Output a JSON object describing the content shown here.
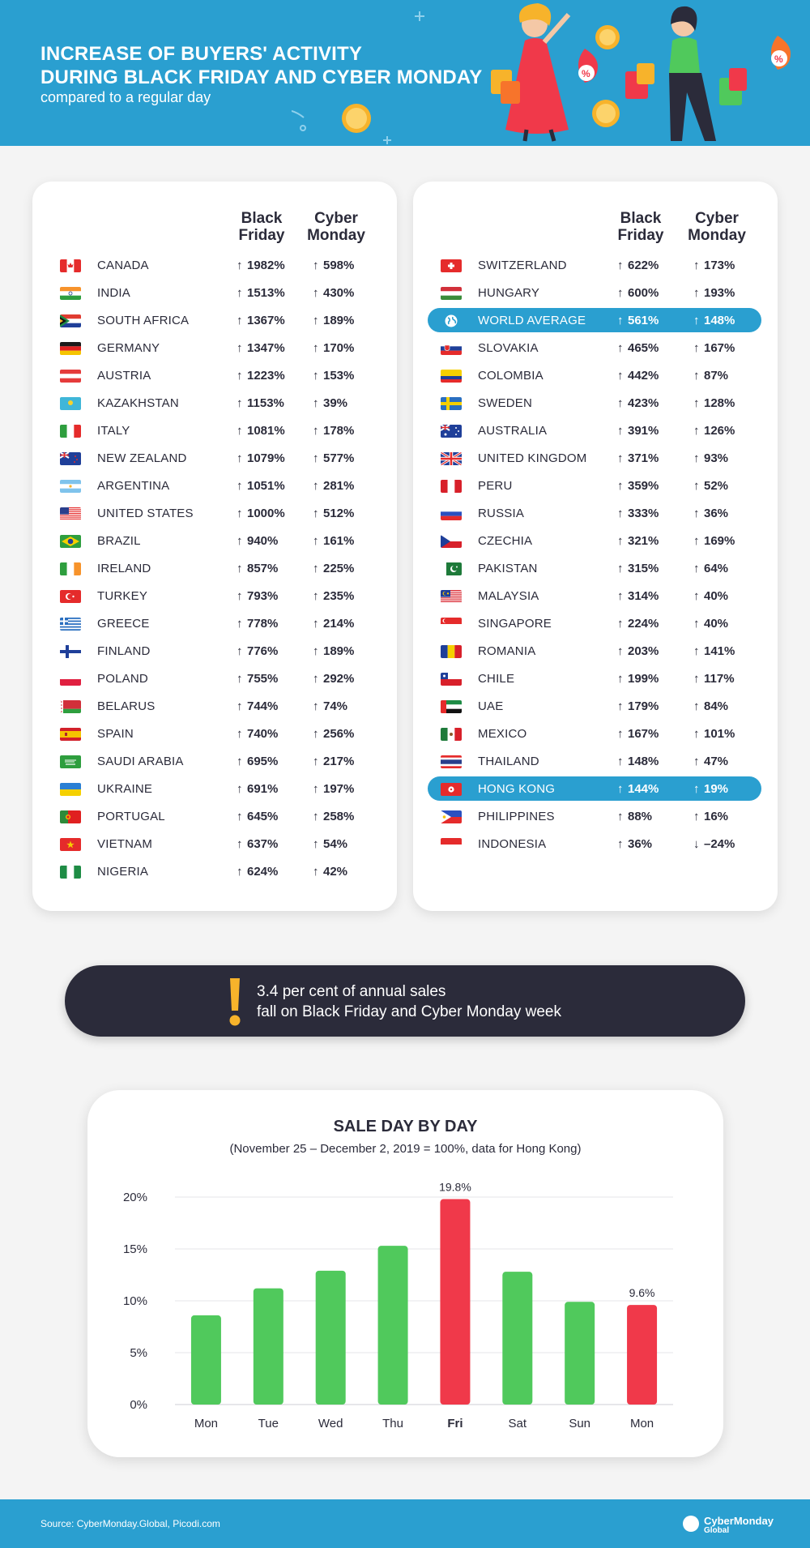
{
  "header": {
    "title_line1": "INCREASE OF BUYERS' ACTIVITY",
    "title_line2": "DURING BLACK FRIDAY AND CYBER MONDAY",
    "subtitle": "compared to a regular day"
  },
  "columns": {
    "black_friday_l1": "Black",
    "black_friday_l2": "Friday",
    "cyber_monday_l1": "Cyber",
    "cyber_monday_l2": "Monday"
  },
  "left_table": [
    {
      "country": "CANADA",
      "flag": "canada-flag",
      "bf": "1982%",
      "cm": "598%",
      "bf_dir": "up",
      "cm_dir": "up"
    },
    {
      "country": "INDIA",
      "flag": "india-flag",
      "bf": "1513%",
      "cm": "430%",
      "bf_dir": "up",
      "cm_dir": "up"
    },
    {
      "country": "SOUTH AFRICA",
      "flag": "south-africa-flag",
      "bf": "1367%",
      "cm": "189%",
      "bf_dir": "up",
      "cm_dir": "up"
    },
    {
      "country": "GERMANY",
      "flag": "germany-flag",
      "bf": "1347%",
      "cm": "170%",
      "bf_dir": "up",
      "cm_dir": "up"
    },
    {
      "country": "AUSTRIA",
      "flag": "austria-flag",
      "bf": "1223%",
      "cm": "153%",
      "bf_dir": "up",
      "cm_dir": "up"
    },
    {
      "country": "KAZAKHSTAN",
      "flag": "kazakhstan-flag",
      "bf": "1153%",
      "cm": "39%",
      "bf_dir": "up",
      "cm_dir": "up"
    },
    {
      "country": "ITALY",
      "flag": "italy-flag",
      "bf": "1081%",
      "cm": "178%",
      "bf_dir": "up",
      "cm_dir": "up"
    },
    {
      "country": "NEW ZEALAND",
      "flag": "new-zealand-flag",
      "bf": "1079%",
      "cm": "577%",
      "bf_dir": "up",
      "cm_dir": "up"
    },
    {
      "country": "ARGENTINA",
      "flag": "argentina-flag",
      "bf": "1051%",
      "cm": "281%",
      "bf_dir": "up",
      "cm_dir": "up"
    },
    {
      "country": "UNITED STATES",
      "flag": "united-states-flag",
      "bf": "1000%",
      "cm": "512%",
      "bf_dir": "up",
      "cm_dir": "up"
    },
    {
      "country": "BRAZIL",
      "flag": "brazil-flag",
      "bf": "940%",
      "cm": "161%",
      "bf_dir": "up",
      "cm_dir": "up"
    },
    {
      "country": "IRELAND",
      "flag": "ireland-flag",
      "bf": "857%",
      "cm": "225%",
      "bf_dir": "up",
      "cm_dir": "up"
    },
    {
      "country": "TURKEY",
      "flag": "turkey-flag",
      "bf": "793%",
      "cm": "235%",
      "bf_dir": "up",
      "cm_dir": "up"
    },
    {
      "country": "GREECE",
      "flag": "greece-flag",
      "bf": "778%",
      "cm": "214%",
      "bf_dir": "up",
      "cm_dir": "up"
    },
    {
      "country": "FINLAND",
      "flag": "finland-flag",
      "bf": "776%",
      "cm": "189%",
      "bf_dir": "up",
      "cm_dir": "up"
    },
    {
      "country": "POLAND",
      "flag": "poland-flag",
      "bf": "755%",
      "cm": "292%",
      "bf_dir": "up",
      "cm_dir": "up"
    },
    {
      "country": "BELARUS",
      "flag": "belarus-flag",
      "bf": "744%",
      "cm": "74%",
      "bf_dir": "up",
      "cm_dir": "up"
    },
    {
      "country": "SPAIN",
      "flag": "spain-flag",
      "bf": "740%",
      "cm": "256%",
      "bf_dir": "up",
      "cm_dir": "up"
    },
    {
      "country": "SAUDI ARABIA",
      "flag": "saudi-arabia-flag",
      "bf": "695%",
      "cm": "217%",
      "bf_dir": "up",
      "cm_dir": "up"
    },
    {
      "country": "UKRAINE",
      "flag": "ukraine-flag",
      "bf": "691%",
      "cm": "197%",
      "bf_dir": "up",
      "cm_dir": "up"
    },
    {
      "country": "PORTUGAL",
      "flag": "portugal-flag",
      "bf": "645%",
      "cm": "258%",
      "bf_dir": "up",
      "cm_dir": "up"
    },
    {
      "country": "VIETNAM",
      "flag": "vietnam-flag",
      "bf": "637%",
      "cm": "54%",
      "bf_dir": "up",
      "cm_dir": "up"
    },
    {
      "country": "NIGERIA",
      "flag": "nigeria-flag",
      "bf": "624%",
      "cm": "42%",
      "bf_dir": "up",
      "cm_dir": "up"
    }
  ],
  "right_table": [
    {
      "country": "SWITZERLAND",
      "flag": "switzerland-flag",
      "bf": "622%",
      "cm": "173%",
      "bf_dir": "up",
      "cm_dir": "up"
    },
    {
      "country": "HUNGARY",
      "flag": "hungary-flag",
      "bf": "600%",
      "cm": "193%",
      "bf_dir": "up",
      "cm_dir": "up"
    },
    {
      "country": "WORLD AVERAGE",
      "flag": "globe-icon",
      "bf": "561%",
      "cm": "148%",
      "bf_dir": "up",
      "cm_dir": "up",
      "highlight": true
    },
    {
      "country": "SLOVAKIA",
      "flag": "slovakia-flag",
      "bf": "465%",
      "cm": "167%",
      "bf_dir": "up",
      "cm_dir": "up"
    },
    {
      "country": "COLOMBIA",
      "flag": "colombia-flag",
      "bf": "442%",
      "cm": "87%",
      "bf_dir": "up",
      "cm_dir": "up"
    },
    {
      "country": "SWEDEN",
      "flag": "sweden-flag",
      "bf": "423%",
      "cm": "128%",
      "bf_dir": "up",
      "cm_dir": "up"
    },
    {
      "country": "AUSTRALIA",
      "flag": "australia-flag",
      "bf": "391%",
      "cm": "126%",
      "bf_dir": "up",
      "cm_dir": "up"
    },
    {
      "country": "UNITED KINGDOM",
      "flag": "united-kingdom-flag",
      "bf": "371%",
      "cm": "93%",
      "bf_dir": "up",
      "cm_dir": "up"
    },
    {
      "country": "PERU",
      "flag": "peru-flag",
      "bf": "359%",
      "cm": "52%",
      "bf_dir": "up",
      "cm_dir": "up"
    },
    {
      "country": "RUSSIA",
      "flag": "russia-flag",
      "bf": "333%",
      "cm": "36%",
      "bf_dir": "up",
      "cm_dir": "up"
    },
    {
      "country": "CZECHIA",
      "flag": "czechia-flag",
      "bf": "321%",
      "cm": "169%",
      "bf_dir": "up",
      "cm_dir": "up"
    },
    {
      "country": "PAKISTAN",
      "flag": "pakistan-flag",
      "bf": "315%",
      "cm": "64%",
      "bf_dir": "up",
      "cm_dir": "up"
    },
    {
      "country": "MALAYSIA",
      "flag": "malaysia-flag",
      "bf": "314%",
      "cm": "40%",
      "bf_dir": "up",
      "cm_dir": "up"
    },
    {
      "country": "SINGAPORE",
      "flag": "singapore-flag",
      "bf": "224%",
      "cm": "40%",
      "bf_dir": "up",
      "cm_dir": "up"
    },
    {
      "country": "ROMANIA",
      "flag": "romania-flag",
      "bf": "203%",
      "cm": "141%",
      "bf_dir": "up",
      "cm_dir": "up"
    },
    {
      "country": "CHILE",
      "flag": "chile-flag",
      "bf": "199%",
      "cm": "117%",
      "bf_dir": "up",
      "cm_dir": "up"
    },
    {
      "country": "UAE",
      "flag": "uae-flag",
      "bf": "179%",
      "cm": "84%",
      "bf_dir": "up",
      "cm_dir": "up"
    },
    {
      "country": "MEXICO",
      "flag": "mexico-flag",
      "bf": "167%",
      "cm": "101%",
      "bf_dir": "up",
      "cm_dir": "up"
    },
    {
      "country": "THAILAND",
      "flag": "thailand-flag",
      "bf": "148%",
      "cm": "47%",
      "bf_dir": "up",
      "cm_dir": "up"
    },
    {
      "country": "HONG KONG",
      "flag": "hong-kong-flag",
      "bf": "144%",
      "cm": "19%",
      "bf_dir": "up",
      "cm_dir": "up",
      "highlight": true
    },
    {
      "country": "PHILIPPINES",
      "flag": "philippines-flag",
      "bf": "88%",
      "cm": "16%",
      "bf_dir": "up",
      "cm_dir": "up"
    },
    {
      "country": "INDONESIA",
      "flag": "indonesia-flag",
      "bf": "36%",
      "cm": "–24%",
      "bf_dir": "up",
      "cm_dir": "down"
    }
  ],
  "callout": {
    "line1": "3.4 per cent of annual sales",
    "line2": "fall on Black Friday and Cyber Monday week",
    "icon": "exclamation-icon"
  },
  "chart_data": {
    "type": "bar",
    "title": "SALE DAY BY DAY",
    "subtitle": "(November 25 – December 2, 2019 = 100%, data for Hong Kong)",
    "categories": [
      "Mon",
      "Tue",
      "Wed",
      "Thu",
      "Fri",
      "Sat",
      "Sun",
      "Mon"
    ],
    "values": [
      8.6,
      11.2,
      12.9,
      15.3,
      19.8,
      12.8,
      9.9,
      9.6
    ],
    "highlighted": [
      false,
      false,
      false,
      false,
      true,
      false,
      false,
      true
    ],
    "data_labels": [
      "",
      "",
      "",
      "",
      "19.8%",
      "",
      "",
      "9.6%"
    ],
    "y_ticks": [
      "0%",
      "5%",
      "10%",
      "15%",
      "20%"
    ],
    "ylim": [
      0,
      20
    ],
    "grid": true,
    "colors": {
      "normal": "#50c95c",
      "highlight": "#f0394a"
    }
  },
  "footer": {
    "source": "Source: CyberMonday.Global, Picodi.com",
    "brand_line1": "CyberMonday",
    "brand_line2": "Global"
  },
  "colors": {
    "header_blue": "#2a9fd0",
    "dark": "#2b2b3a",
    "highlight_row": "#2a9fd0",
    "exclamation": "#f7b32b"
  }
}
